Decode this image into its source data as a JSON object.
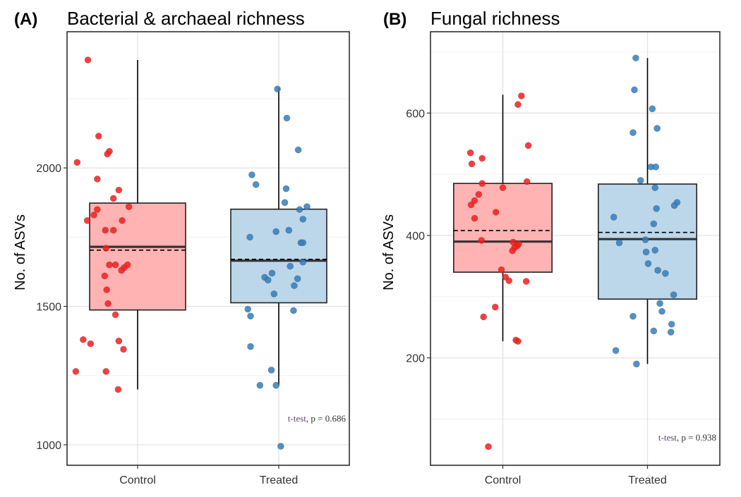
{
  "chart_data": [
    {
      "type": "box",
      "tag": "(A)",
      "title": "Bacterial & archaeal richness",
      "ylabel": "No. of ASVs",
      "xlabel": "",
      "categories": [
        "Control",
        "Treated"
      ],
      "ylim": [
        920,
        2500
      ],
      "yticks": [
        1000,
        1500,
        2000
      ],
      "grid": true,
      "annotation": {
        "test": "t-test",
        "rest": ", p = 0.686"
      },
      "groups": [
        {
          "name": "Control",
          "fill": "#ffb3b3",
          "point_color": "#ff1a1a",
          "q1": 1487,
          "median": 1715,
          "q3": 1873,
          "mean": 1703,
          "whisker_low": 1200,
          "whisker_high": 2390,
          "points": [
            [
              -0.74,
              2390
            ],
            [
              -0.58,
              2115
            ],
            [
              -0.9,
              2020
            ],
            [
              -0.42,
              2060
            ],
            [
              -0.45,
              2050
            ],
            [
              -0.6,
              1960
            ],
            [
              -0.28,
              1920
            ],
            [
              -0.36,
              1890
            ],
            [
              -0.13,
              1860
            ],
            [
              -0.6,
              1850
            ],
            [
              -0.65,
              1830
            ],
            [
              -0.75,
              1810
            ],
            [
              -0.23,
              1810
            ],
            [
              -0.48,
              1775
            ],
            [
              -0.36,
              1775
            ],
            [
              -0.47,
              1710
            ],
            [
              -0.33,
              1650
            ],
            [
              -0.42,
              1650
            ],
            [
              -0.2,
              1640
            ],
            [
              -0.15,
              1650
            ],
            [
              -0.24,
              1630
            ],
            [
              -0.49,
              1610
            ],
            [
              -0.46,
              1560
            ],
            [
              -0.44,
              1510
            ],
            [
              -0.33,
              1470
            ],
            [
              -0.81,
              1380
            ],
            [
              -0.7,
              1365
            ],
            [
              -0.28,
              1375
            ],
            [
              -0.21,
              1345
            ],
            [
              -0.92,
              1265
            ],
            [
              -0.47,
              1265
            ],
            [
              -0.29,
              1200
            ]
          ]
        },
        {
          "name": "Treated",
          "fill": "#bcd6ea",
          "point_color": "#2f7fc1",
          "q1": 1513,
          "median": 1665,
          "q3": 1851,
          "mean": 1670,
          "whisker_low": 1215,
          "whisker_high": 2290,
          "points": [
            [
              -0.02,
              2285
            ],
            [
              0.12,
              2180
            ],
            [
              0.29,
              2065
            ],
            [
              -0.4,
              1975
            ],
            [
              -0.34,
              1940
            ],
            [
              0.11,
              1925
            ],
            [
              0.09,
              1875
            ],
            [
              0.42,
              1860
            ],
            [
              0.31,
              1850
            ],
            [
              0.36,
              1815
            ],
            [
              0.15,
              1775
            ],
            [
              -0.04,
              1770
            ],
            [
              -0.43,
              1750
            ],
            [
              0.33,
              1730
            ],
            [
              0.36,
              1730
            ],
            [
              0.36,
              1660
            ],
            [
              0.17,
              1645
            ],
            [
              -0.1,
              1620
            ],
            [
              -0.21,
              1605
            ],
            [
              -0.16,
              1595
            ],
            [
              0.28,
              1600
            ],
            [
              0.23,
              1575
            ],
            [
              -0.07,
              1545
            ],
            [
              -0.46,
              1490
            ],
            [
              0.22,
              1485
            ],
            [
              -0.42,
              1465
            ],
            [
              -0.42,
              1355
            ],
            [
              -0.11,
              1270
            ],
            [
              -0.28,
              1215
            ],
            [
              -0.04,
              1215
            ],
            [
              0.03,
              995
            ]
          ]
        }
      ]
    },
    {
      "type": "box",
      "tag": "(B)",
      "title": "Fungal richness",
      "ylabel": "No. of ASVs",
      "xlabel": "",
      "categories": [
        "Control",
        "Treated"
      ],
      "ylim": [
        30,
        720
      ],
      "yticks": [
        200,
        400,
        600
      ],
      "grid": true,
      "annotation": {
        "test": "t-test",
        "rest": ", p = 0.938"
      },
      "groups": [
        {
          "name": "Control",
          "fill": "#ffb3b3",
          "point_color": "#ff1a1a",
          "q1": 340,
          "median": 390,
          "q3": 485,
          "mean": 408,
          "whisker_low": 227,
          "whisker_high": 630,
          "points": [
            [
              0.27,
              628
            ],
            [
              0.22,
              614
            ],
            [
              0.37,
              547
            ],
            [
              -0.47,
              535
            ],
            [
              -0.3,
              526
            ],
            [
              -0.45,
              517
            ],
            [
              0.35,
              488
            ],
            [
              -0.3,
              485
            ],
            [
              0.0,
              478
            ],
            [
              -0.35,
              467
            ],
            [
              -0.41,
              457
            ],
            [
              -0.46,
              450
            ],
            [
              -0.1,
              438
            ],
            [
              -0.41,
              428
            ],
            [
              -0.31,
              392
            ],
            [
              0.15,
              389
            ],
            [
              0.23,
              386
            ],
            [
              0.21,
              383
            ],
            [
              0.17,
              380
            ],
            [
              0.14,
              375
            ],
            [
              -0.02,
              344
            ],
            [
              0.04,
              332
            ],
            [
              0.09,
              326
            ],
            [
              0.34,
              325
            ],
            [
              -0.11,
              283
            ],
            [
              -0.28,
              267
            ],
            [
              0.19,
              229
            ],
            [
              0.22,
              227
            ],
            [
              -0.21,
              55
            ]
          ]
        },
        {
          "name": "Treated",
          "fill": "#bcd6ea",
          "point_color": "#2f7fc1",
          "q1": 296,
          "median": 394,
          "q3": 484,
          "mean": 405,
          "whisker_low": 190,
          "whisker_high": 690,
          "points": [
            [
              -0.17,
              690
            ],
            [
              -0.19,
              638
            ],
            [
              0.07,
              607
            ],
            [
              0.14,
              575
            ],
            [
              -0.21,
              568
            ],
            [
              0.05,
              512
            ],
            [
              0.12,
              512
            ],
            [
              -0.1,
              490
            ],
            [
              0.11,
              478
            ],
            [
              0.43,
              454
            ],
            [
              0.39,
              449
            ],
            [
              0.13,
              444
            ],
            [
              -0.49,
              430
            ],
            [
              0.09,
              419
            ],
            [
              -0.03,
              393
            ],
            [
              -0.41,
              388
            ],
            [
              0.11,
              376
            ],
            [
              -0.02,
              373
            ],
            [
              0.01,
              354
            ],
            [
              0.15,
              343
            ],
            [
              0.26,
              338
            ],
            [
              0.38,
              303
            ],
            [
              0.18,
              289
            ],
            [
              -0.21,
              268
            ],
            [
              0.21,
              276
            ],
            [
              0.35,
              255
            ],
            [
              0.09,
              244
            ],
            [
              0.34,
              242
            ],
            [
              -0.46,
              212
            ],
            [
              -0.16,
              190
            ]
          ]
        }
      ]
    }
  ]
}
